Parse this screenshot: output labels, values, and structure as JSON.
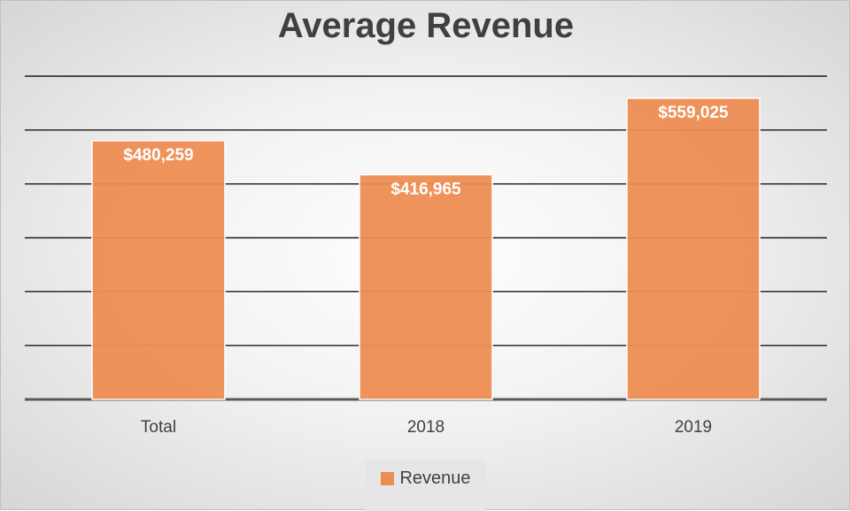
{
  "chart_data": {
    "type": "bar",
    "title": "Average Revenue",
    "categories": [
      "Total",
      "2018",
      "2019"
    ],
    "series": [
      {
        "name": "Revenue",
        "values": [
          480259,
          416965,
          559025
        ],
        "color": "#ed8d52"
      }
    ],
    "data_labels": [
      "$480,259",
      "$416,965",
      "$559,025"
    ],
    "ylim": [
      0,
      600000
    ],
    "ytick_step": 100000,
    "show_y_tick_labels": false,
    "grid": true,
    "legend": "bottom"
  }
}
